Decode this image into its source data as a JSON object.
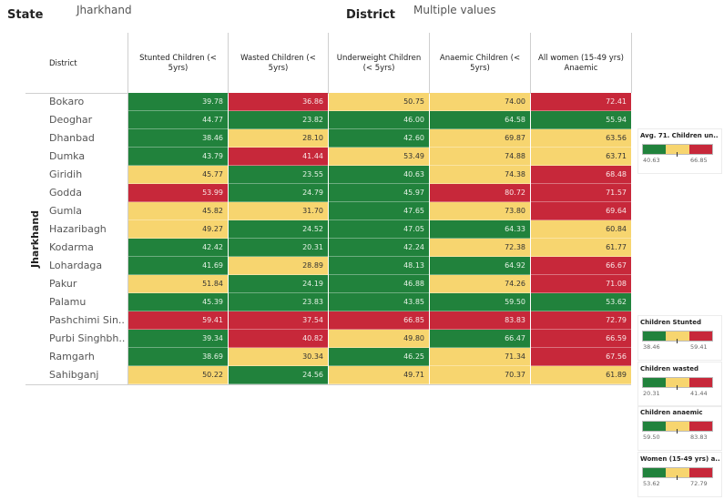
{
  "filters": {
    "state_label": "State",
    "state_value": "Jharkhand",
    "district_label": "District",
    "district_value": "Multiple values"
  },
  "table": {
    "state_name": "Jharkhand",
    "district_header": "District",
    "columns": [
      "Stunted Children (< 5yrs)",
      "Wasted Children (< 5yrs)",
      "Underweight  Children (< 5yrs)",
      "Anaemic Children (< 5yrs)",
      "All women (15-49 yrs) Anaemic"
    ],
    "rows": [
      {
        "district": "Bokaro",
        "values": [
          "39.78",
          "36.86",
          "50.75",
          "74.00",
          "72.41"
        ],
        "colors": [
          "g",
          "r",
          "y",
          "y",
          "r"
        ]
      },
      {
        "district": "Deoghar",
        "values": [
          "44.77",
          "23.82",
          "46.00",
          "64.58",
          "55.94"
        ],
        "colors": [
          "g",
          "g",
          "g",
          "g",
          "g"
        ]
      },
      {
        "district": "Dhanbad",
        "values": [
          "38.46",
          "28.10",
          "42.60",
          "69.87",
          "63.56"
        ],
        "colors": [
          "g",
          "y",
          "g",
          "y",
          "y"
        ]
      },
      {
        "district": "Dumka",
        "values": [
          "43.79",
          "41.44",
          "53.49",
          "74.88",
          "63.71"
        ],
        "colors": [
          "g",
          "r",
          "y",
          "y",
          "y"
        ]
      },
      {
        "district": "Giridih",
        "values": [
          "45.77",
          "23.55",
          "40.63",
          "74.38",
          "68.48"
        ],
        "colors": [
          "y",
          "g",
          "g",
          "y",
          "r"
        ]
      },
      {
        "district": "Godda",
        "values": [
          "53.99",
          "24.79",
          "45.97",
          "80.72",
          "71.57"
        ],
        "colors": [
          "r",
          "g",
          "g",
          "r",
          "r"
        ]
      },
      {
        "district": "Gumla",
        "values": [
          "45.82",
          "31.70",
          "47.65",
          "73.80",
          "69.64"
        ],
        "colors": [
          "y",
          "y",
          "g",
          "y",
          "r"
        ]
      },
      {
        "district": "Hazaribagh",
        "values": [
          "49.27",
          "24.52",
          "47.05",
          "64.33",
          "60.84"
        ],
        "colors": [
          "y",
          "g",
          "g",
          "g",
          "y"
        ]
      },
      {
        "district": "Kodarma",
        "values": [
          "42.42",
          "20.31",
          "42.24",
          "72.38",
          "61.77"
        ],
        "colors": [
          "g",
          "g",
          "g",
          "y",
          "y"
        ]
      },
      {
        "district": "Lohardaga",
        "values": [
          "41.69",
          "28.89",
          "48.13",
          "64.92",
          "66.67"
        ],
        "colors": [
          "g",
          "y",
          "g",
          "g",
          "r"
        ]
      },
      {
        "district": "Pakur",
        "values": [
          "51.84",
          "24.19",
          "46.88",
          "74.26",
          "71.08"
        ],
        "colors": [
          "y",
          "g",
          "g",
          "y",
          "r"
        ]
      },
      {
        "district": "Palamu",
        "values": [
          "45.39",
          "23.83",
          "43.85",
          "59.50",
          "53.62"
        ],
        "colors": [
          "g",
          "g",
          "g",
          "g",
          "g"
        ]
      },
      {
        "district": "Pashchimi Sin..",
        "values": [
          "59.41",
          "37.54",
          "66.85",
          "83.83",
          "72.79"
        ],
        "colors": [
          "r",
          "r",
          "r",
          "r",
          "r"
        ]
      },
      {
        "district": "Purbi Singhbh..",
        "values": [
          "39.34",
          "40.82",
          "49.80",
          "66.47",
          "66.59"
        ],
        "colors": [
          "g",
          "r",
          "y",
          "g",
          "r"
        ]
      },
      {
        "district": "Ramgarh",
        "values": [
          "38.69",
          "30.34",
          "46.25",
          "71.34",
          "67.56"
        ],
        "colors": [
          "g",
          "y",
          "g",
          "y",
          "r"
        ]
      },
      {
        "district": "Sahibganj",
        "values": [
          "50.22",
          "24.56",
          "49.71",
          "70.37",
          "61.89"
        ],
        "colors": [
          "y",
          "g",
          "y",
          "y",
          "y"
        ]
      }
    ]
  },
  "legends": [
    {
      "title": "Avg. 71. Children un..",
      "min": "40.63",
      "max": "66.85"
    },
    {
      "title": "Children Stunted",
      "min": "38.46",
      "max": "59.41"
    },
    {
      "title": "Children wasted",
      "min": "20.31",
      "max": "41.44"
    },
    {
      "title": "Children  anaemic",
      "min": "59.50",
      "max": "83.83"
    },
    {
      "title": "Women (15-49 yrs) a..",
      "min": "53.62",
      "max": "72.79"
    }
  ],
  "colors": {
    "green": "#21823c",
    "yellow": "#f7d56f",
    "red": "#c7283a",
    "green_text": "#e6f2e6",
    "yellow_text": "#333333",
    "red_text": "#f8e6e6"
  }
}
